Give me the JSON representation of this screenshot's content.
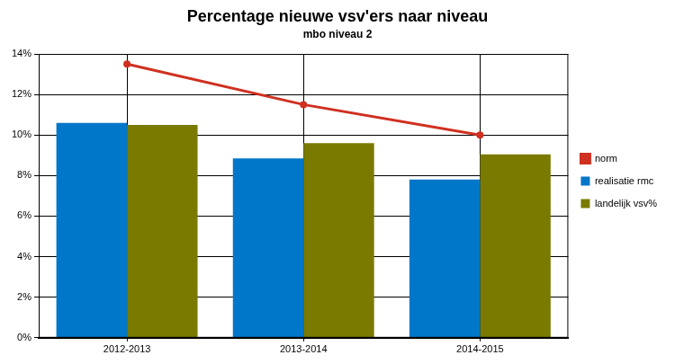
{
  "chart_data": {
    "type": "bar",
    "title": "Percentage nieuwe vsv'ers naar niveau",
    "subtitle": "mbo niveau 2",
    "categories": [
      "2012-2013",
      "2013-2014",
      "2014-2015"
    ],
    "series": [
      {
        "name": "realisatie rmc",
        "color": "#0077c8",
        "values": [
          10.6,
          8.85,
          7.8
        ]
      },
      {
        "name": "landelijk vsv%",
        "color": "#7a7a00",
        "values": [
          10.5,
          9.6,
          9.05
        ]
      },
      {
        "name": "norm",
        "color": "#d03020",
        "type": "line",
        "values": [
          13.5,
          11.5,
          10.0
        ]
      }
    ],
    "ylim": [
      0,
      14
    ],
    "yticks": [
      {
        "value": 0,
        "label": "0%"
      },
      {
        "value": 2,
        "label": "2%"
      },
      {
        "value": 4,
        "label": "4%"
      },
      {
        "value": 6,
        "label": "6%"
      },
      {
        "value": 8,
        "label": "8%"
      },
      {
        "value": 10,
        "label": "10%"
      },
      {
        "value": 12,
        "label": "12%"
      },
      {
        "value": 14,
        "label": "14%"
      }
    ],
    "grid": true,
    "legend": "right"
  }
}
